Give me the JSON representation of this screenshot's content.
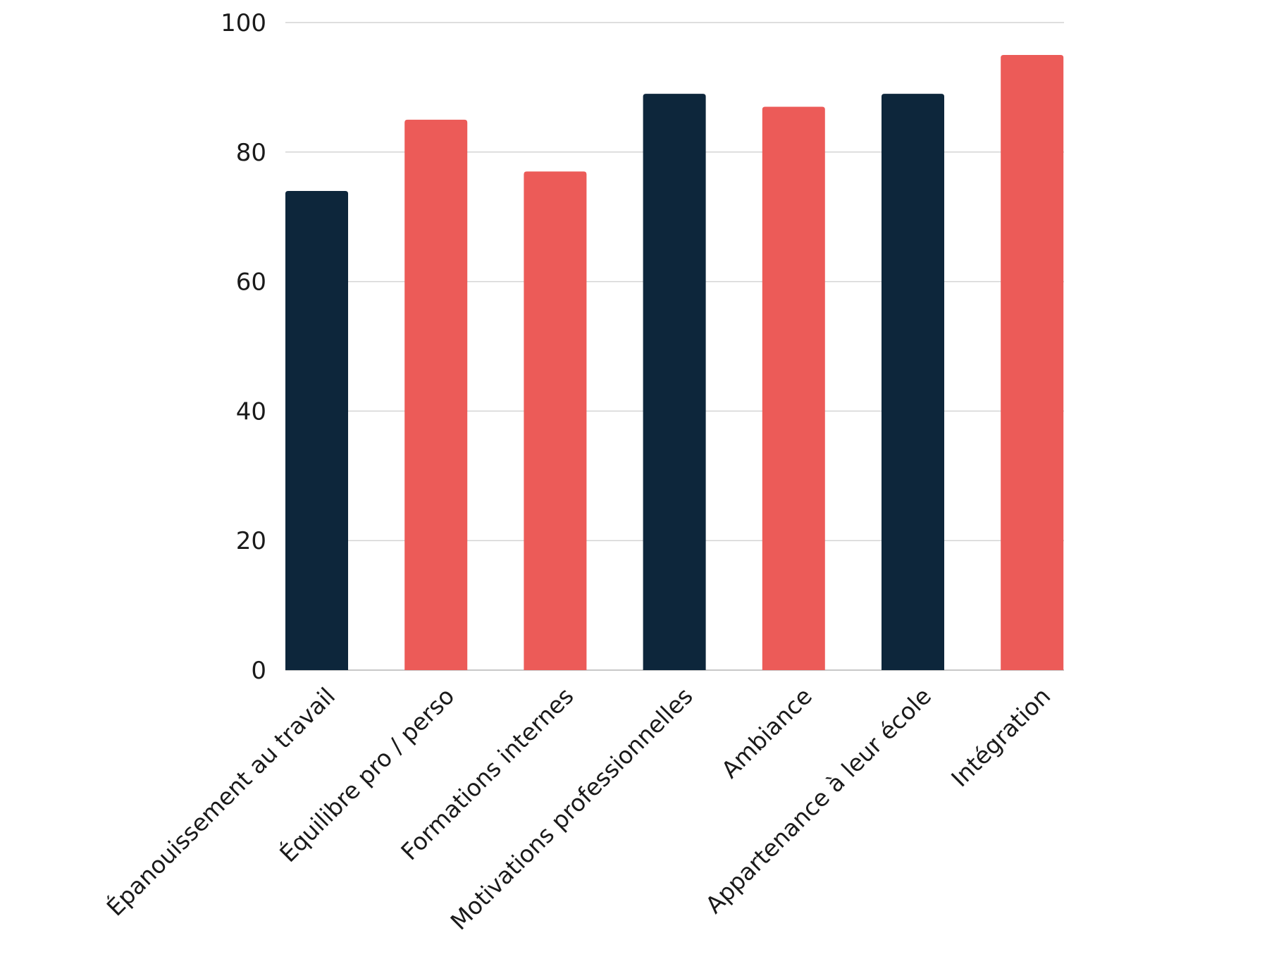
{
  "chart_data": {
    "type": "bar",
    "categories": [
      "Épanouissement au travail",
      "Équilibre pro / perso",
      "Formations internes",
      "Motivations professionnelles",
      "Ambiance",
      "Appartenance à leur école",
      "Intégration"
    ],
    "values": [
      74,
      85,
      77,
      89,
      87,
      89,
      95
    ],
    "bar_colors": [
      "#0d263b",
      "#ec5b58",
      "#ec5b58",
      "#0d263b",
      "#ec5b58",
      "#0d263b",
      "#ec5b58"
    ],
    "title": "",
    "xlabel": "",
    "ylabel": "",
    "ylim": [
      0,
      100
    ],
    "yticks": [
      0,
      20,
      40,
      60,
      80,
      100
    ],
    "grid": true,
    "legend": "none"
  }
}
